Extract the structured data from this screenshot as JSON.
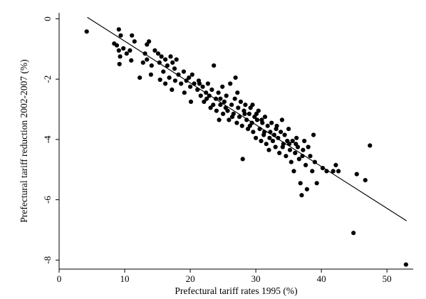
{
  "chart_data": {
    "type": "scatter",
    "title": "",
    "xlabel": "Prefectural tariff rates 1995 (%)",
    "ylabel": "Prefectural tariff reduction 2002-2007 (%)",
    "xlim": [
      0,
      54
    ],
    "ylim": [
      -8.3,
      0.2
    ],
    "xticks": [
      0,
      10,
      20,
      30,
      40,
      50
    ],
    "yticks": [
      0,
      -2,
      -4,
      -6,
      -8
    ],
    "marker_color": "#000000",
    "line_color": "#000000",
    "grid": false,
    "legend": "none",
    "fit_line": {
      "x": [
        4.3,
        53.0
      ],
      "y": [
        0.05,
        -6.7
      ]
    },
    "points": [
      [
        4.2,
        -0.42
      ],
      [
        8.4,
        -0.82
      ],
      [
        8.8,
        -0.88
      ],
      [
        9.1,
        -0.35
      ],
      [
        9.4,
        -0.55
      ],
      [
        9.1,
        -1.05
      ],
      [
        9.3,
        -1.25
      ],
      [
        9.2,
        -1.5
      ],
      [
        9.8,
        -0.98
      ],
      [
        10.3,
        -1.15
      ],
      [
        11.1,
        -0.55
      ],
      [
        11.5,
        -0.75
      ],
      [
        11.0,
        -1.38
      ],
      [
        10.8,
        -1.05
      ],
      [
        12.3,
        -1.95
      ],
      [
        12.8,
        -1.45
      ],
      [
        13.1,
        -1.15
      ],
      [
        13.4,
        -0.85
      ],
      [
        13.7,
        -0.75
      ],
      [
        13.4,
        -1.35
      ],
      [
        14.1,
        -1.55
      ],
      [
        14.0,
        -1.85
      ],
      [
        14.6,
        -1.05
      ],
      [
        15.1,
        -1.15
      ],
      [
        15.3,
        -1.45
      ],
      [
        15.6,
        -1.25
      ],
      [
        15.9,
        -1.75
      ],
      [
        15.4,
        -2.02
      ],
      [
        16.2,
        -1.35
      ],
      [
        16.5,
        -1.55
      ],
      [
        16.2,
        -2.15
      ],
      [
        16.8,
        -1.95
      ],
      [
        17.0,
        -1.25
      ],
      [
        17.3,
        -1.45
      ],
      [
        17.6,
        -1.65
      ],
      [
        17.9,
        -1.35
      ],
      [
        17.2,
        -2.35
      ],
      [
        17.7,
        -2.05
      ],
      [
        18.2,
        -1.85
      ],
      [
        18.6,
        -2.15
      ],
      [
        19.0,
        -1.75
      ],
      [
        19.4,
        -2.05
      ],
      [
        19.1,
        -2.45
      ],
      [
        19.8,
        -1.95
      ],
      [
        20.0,
        -2.25
      ],
      [
        20.3,
        -1.85
      ],
      [
        20.6,
        -2.15
      ],
      [
        20.1,
        -2.75
      ],
      [
        21.1,
        -2.35
      ],
      [
        21.3,
        -2.05
      ],
      [
        21.6,
        -2.55
      ],
      [
        21.9,
        -2.25
      ],
      [
        22.1,
        -2.75
      ],
      [
        22.4,
        -2.45
      ],
      [
        22.7,
        -2.15
      ],
      [
        22.9,
        -2.55
      ],
      [
        23.1,
        -2.95
      ],
      [
        23.3,
        -2.35
      ],
      [
        23.6,
        -1.55
      ],
      [
        23.9,
        -2.65
      ],
      [
        24.0,
        -3.05
      ],
      [
        24.3,
        -2.45
      ],
      [
        24.6,
        -2.85
      ],
      [
        24.9,
        -2.25
      ],
      [
        25.0,
        -3.15
      ],
      [
        25.2,
        -2.75
      ],
      [
        25.5,
        -2.55
      ],
      [
        25.7,
        -3.05
      ],
      [
        25.9,
        -3.35
      ],
      [
        26.1,
        -2.15
      ],
      [
        26.3,
        -2.85
      ],
      [
        26.6,
        -3.15
      ],
      [
        26.8,
        -2.65
      ],
      [
        26.9,
        -1.95
      ],
      [
        27.1,
        -3.45
      ],
      [
        27.3,
        -2.95
      ],
      [
        27.5,
        -3.25
      ],
      [
        27.7,
        -2.75
      ],
      [
        27.9,
        -3.55
      ],
      [
        28.0,
        -4.65
      ],
      [
        28.2,
        -3.05
      ],
      [
        28.4,
        -2.85
      ],
      [
        28.6,
        -3.35
      ],
      [
        28.8,
        -3.65
      ],
      [
        29.0,
        -3.15
      ],
      [
        29.2,
        -2.95
      ],
      [
        29.4,
        -3.45
      ],
      [
        29.6,
        -3.75
      ],
      [
        29.8,
        -3.25
      ],
      [
        30.0,
        -3.95
      ],
      [
        30.2,
        -3.35
      ],
      [
        30.4,
        -3.05
      ],
      [
        30.6,
        -3.65
      ],
      [
        30.8,
        -4.05
      ],
      [
        31.0,
        -3.45
      ],
      [
        31.2,
        -3.85
      ],
      [
        31.4,
        -3.25
      ],
      [
        31.6,
        -4.15
      ],
      [
        31.8,
        -3.55
      ],
      [
        32.0,
        -4.35
      ],
      [
        32.2,
        -3.75
      ],
      [
        32.4,
        -3.45
      ],
      [
        32.6,
        -4.05
      ],
      [
        32.8,
        -3.85
      ],
      [
        33.0,
        -4.25
      ],
      [
        33.2,
        -3.55
      ],
      [
        33.4,
        -3.95
      ],
      [
        33.6,
        -4.45
      ],
      [
        33.8,
        -3.75
      ],
      [
        34.0,
        -3.35
      ],
      [
        34.2,
        -4.15
      ],
      [
        34.4,
        -3.85
      ],
      [
        34.6,
        -4.55
      ],
      [
        34.8,
        -4.05
      ],
      [
        35.0,
        -3.65
      ],
      [
        35.2,
        -4.35
      ],
      [
        35.4,
        -4.75
      ],
      [
        35.6,
        -4.05
      ],
      [
        35.8,
        -5.05
      ],
      [
        36.0,
        -4.45
      ],
      [
        36.2,
        -3.95
      ],
      [
        36.4,
        -4.25
      ],
      [
        36.6,
        -4.65
      ],
      [
        36.8,
        -5.45
      ],
      [
        37.0,
        -5.85
      ],
      [
        37.2,
        -4.35
      ],
      [
        37.4,
        -4.05
      ],
      [
        37.6,
        -4.85
      ],
      [
        37.8,
        -5.65
      ],
      [
        38.0,
        -4.25
      ],
      [
        38.3,
        -4.55
      ],
      [
        38.6,
        -5.05
      ],
      [
        38.8,
        -3.85
      ],
      [
        39.0,
        -4.75
      ],
      [
        39.3,
        -5.45
      ],
      [
        40.2,
        -4.95
      ],
      [
        40.8,
        -5.05
      ],
      [
        41.8,
        -5.05
      ],
      [
        42.2,
        -4.85
      ],
      [
        42.6,
        -5.05
      ],
      [
        45.4,
        -5.15
      ],
      [
        46.7,
        -5.35
      ],
      [
        47.4,
        -4.2
      ],
      [
        44.9,
        -7.1
      ],
      [
        52.9,
        -8.15
      ],
      [
        24.6,
        -2.65
      ],
      [
        25.4,
        -2.95
      ],
      [
        26.4,
        -3.25
      ],
      [
        27.2,
        -2.45
      ],
      [
        28.3,
        -3.15
      ],
      [
        29.1,
        -3.55
      ],
      [
        30.1,
        -3.15
      ],
      [
        31.3,
        -3.75
      ],
      [
        32.1,
        -3.95
      ],
      [
        33.1,
        -3.65
      ],
      [
        34.1,
        -4.25
      ],
      [
        35.1,
        -4.15
      ],
      [
        36.1,
        -4.15
      ],
      [
        37.1,
        -4.55
      ],
      [
        29.5,
        -2.85
      ],
      [
        30.9,
        -3.35
      ],
      [
        23.5,
        -2.85
      ],
      [
        24.4,
        -3.35
      ],
      [
        22.5,
        -2.65
      ],
      [
        21.4,
        -2.15
      ]
    ]
  }
}
